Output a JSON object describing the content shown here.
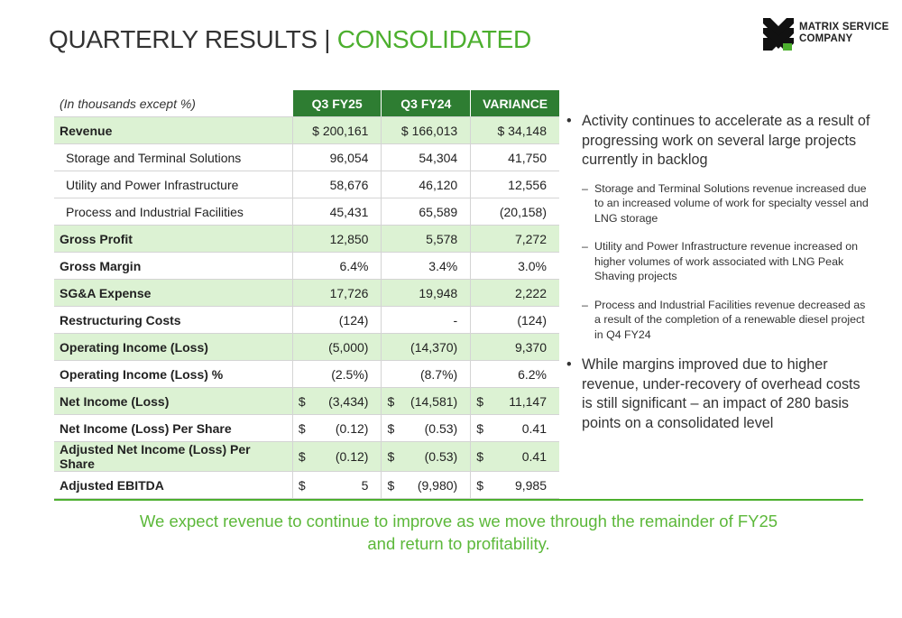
{
  "header": {
    "title_main": "QUARTERLY RESULTS | ",
    "title_accent": "CONSOLIDATED",
    "logo_line1": "MATRIX SERVICE",
    "logo_line2": "COMPANY"
  },
  "table": {
    "caption": "(In thousands except %)",
    "columns": [
      "Q3 FY25",
      "Q3 FY24",
      "VARIANCE"
    ],
    "rows": [
      {
        "label": "Revenue",
        "values": [
          "$ 200,161",
          "$ 166,013",
          "$ 34,148"
        ]
      },
      {
        "label": "Storage and Terminal Solutions",
        "values": [
          "96,054",
          "54,304",
          "41,750"
        ]
      },
      {
        "label": "Utility and Power Infrastructure",
        "values": [
          "58,676",
          "46,120",
          "12,556"
        ]
      },
      {
        "label": "Process and Industrial Facilities",
        "values": [
          "45,431",
          "65,589",
          "(20,158)"
        ]
      },
      {
        "label": "Gross Profit",
        "values": [
          "12,850",
          "5,578",
          "7,272"
        ]
      },
      {
        "label": "Gross Margin",
        "values": [
          "6.4%",
          "3.4%",
          "3.0%"
        ]
      },
      {
        "label": "SG&A Expense",
        "values": [
          "17,726",
          "19,948",
          "2,222"
        ]
      },
      {
        "label": "Restructuring Costs",
        "values": [
          "(124)",
          "-",
          "(124)"
        ]
      },
      {
        "label": "Operating Income (Loss)",
        "values": [
          "(5,000)",
          "(14,370)",
          "9,370"
        ]
      },
      {
        "label": "Operating Income (Loss) %",
        "values": [
          "(2.5%)",
          "(8.7%)",
          "6.2%"
        ]
      },
      {
        "label": "Net Income (Loss)",
        "values": [
          "(3,434)",
          "(14,581)",
          "11,147"
        ]
      },
      {
        "label": "Net Income (Loss) Per Share",
        "values": [
          "(0.12)",
          "(0.53)",
          "0.41"
        ]
      },
      {
        "label": "Adjusted Net Income (Loss) Per Share",
        "values": [
          "(0.12)",
          "(0.53)",
          "0.41"
        ]
      },
      {
        "label": "Adjusted EBITDA",
        "values": [
          "5",
          "(9,980)",
          "9,985"
        ]
      }
    ],
    "currency_symbol": "$"
  },
  "commentary": {
    "bullet1": "Activity continues to accelerate as a result of progressing work on several large projects currently in backlog",
    "sub1": "Storage and Terminal Solutions revenue increased due to an increased volume of work for specialty vessel and LNG storage",
    "sub2": "Utility and Power Infrastructure revenue increased on higher volumes of work associated with LNG Peak Shaving projects",
    "sub3": "Process and Industrial Facilities revenue decreased as a result of the completion of a renewable diesel project in Q4 FY24",
    "bullet2": "While margins improved due to higher revenue, under-recovery of overhead costs is still significant – an impact of 280 basis points on a consolidated level",
    "bullet_symbol": "•",
    "dash_symbol": "–"
  },
  "footer": {
    "line1": "We expect revenue to continue to improve as we move through the remainder of FY25",
    "line2": "and return to profitability."
  },
  "colors": {
    "accent_green": "#4caf2e",
    "header_green": "#2e7d32",
    "highlight_row": "#dcf2d3"
  }
}
